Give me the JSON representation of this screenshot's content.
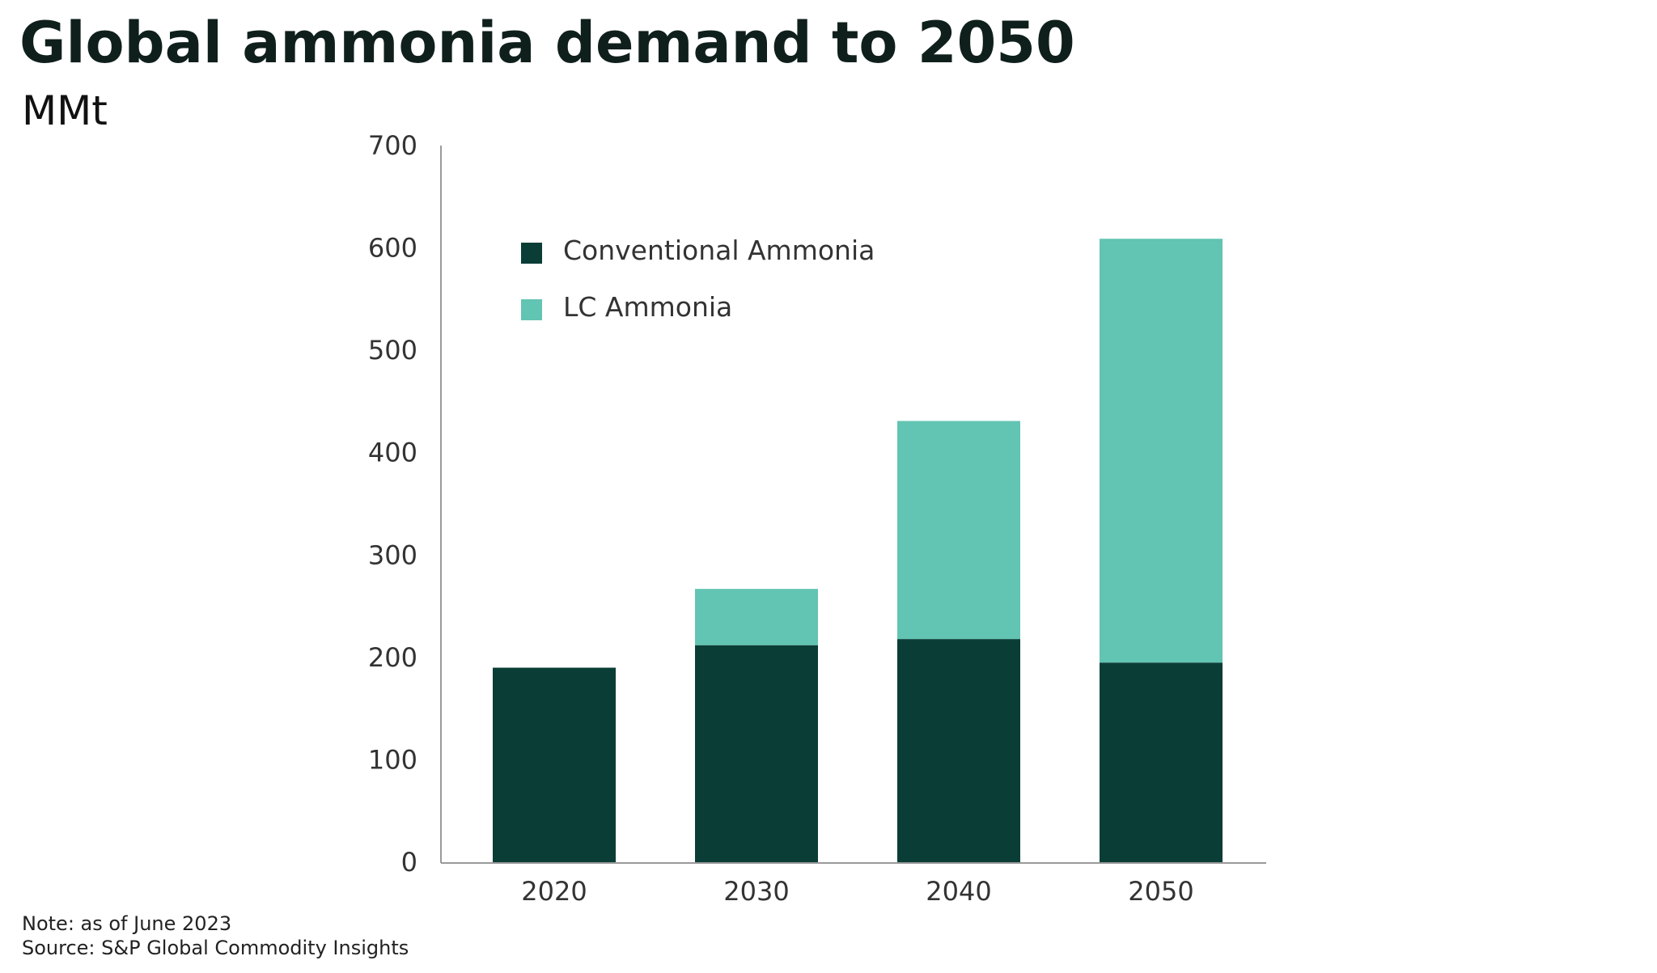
{
  "chart_data": {
    "type": "bar",
    "stacked": true,
    "title": "Global ammonia demand to 2050",
    "subtitle": "MMt",
    "categories": [
      "2020",
      "2030",
      "2040",
      "2050"
    ],
    "series": [
      {
        "name": "Conventional Ammonia",
        "color": "#0b3d37",
        "values": [
          190,
          212,
          218,
          195
        ]
      },
      {
        "name": "LC Ammonia",
        "color": "#62c4b2",
        "values": [
          0,
          55,
          213,
          414
        ]
      }
    ],
    "ylim": [
      0,
      700
    ],
    "yticks": [
      "0",
      "100",
      "200",
      "300",
      "400",
      "500",
      "600",
      "700"
    ],
    "grid": false,
    "legend_position": "top-left"
  },
  "footer": {
    "note": "Note: as of June 2023",
    "source": "Source: S&P Global Commodity Insights"
  }
}
